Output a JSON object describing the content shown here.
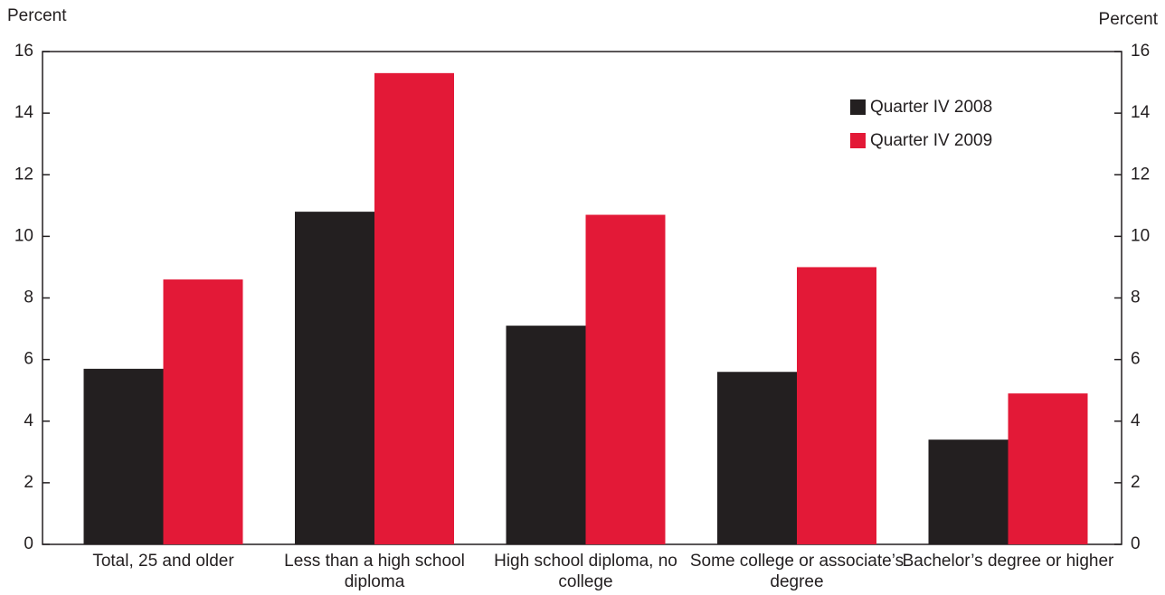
{
  "chart_data": {
    "type": "bar",
    "y_label": "Percent",
    "y2_label": "Percent",
    "categories": [
      "Total, 25 and older",
      "Less than a high school diploma",
      "High school diploma, no college",
      "Some college or associate’s degree",
      "Bachelor’s degree or higher"
    ],
    "series": [
      {
        "name": "Quarter IV 2008",
        "color": "#231f20",
        "values": [
          5.7,
          10.8,
          7.1,
          5.6,
          3.4
        ]
      },
      {
        "name": "Quarter IV 2009",
        "color": "#e31937",
        "values": [
          8.6,
          15.3,
          10.7,
          9.0,
          4.9
        ]
      }
    ],
    "ylim": [
      0,
      16
    ],
    "yticks": [
      0,
      2,
      4,
      6,
      8,
      10,
      12,
      14,
      16
    ],
    "y2lim": [
      0,
      16
    ],
    "y2ticks": [
      0,
      2,
      4,
      6,
      8,
      10,
      12,
      14,
      16
    ],
    "legend": "upper right",
    "grid": false
  }
}
